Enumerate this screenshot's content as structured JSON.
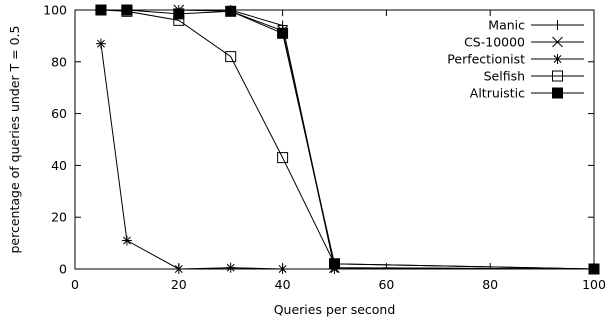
{
  "chart_data": {
    "type": "line",
    "xlabel": "Queries per second",
    "ylabel": "percentage of queries under T = 0.5",
    "xlim": [
      0,
      100
    ],
    "ylim": [
      0,
      100
    ],
    "xticks": [
      0,
      20,
      40,
      60,
      80,
      100
    ],
    "yticks": [
      0,
      20,
      40,
      60,
      80,
      100
    ],
    "legend_position": "top-right",
    "grid": false,
    "series": [
      {
        "name": "Manic",
        "marker": "plus",
        "x": [
          5,
          10,
          20,
          30,
          40,
          50,
          100
        ],
        "y": [
          100,
          100,
          100,
          100,
          94,
          0.5,
          0
        ]
      },
      {
        "name": "CS-10000",
        "marker": "cross",
        "x": [
          5,
          10,
          20,
          30,
          40,
          50,
          100
        ],
        "y": [
          100,
          100,
          100,
          99.5,
          92,
          0.5,
          0
        ]
      },
      {
        "name": "Perfectionist",
        "marker": "star",
        "x": [
          5,
          10,
          20,
          30,
          40,
          50,
          100
        ],
        "y": [
          87,
          11,
          0,
          0.5,
          0,
          0,
          0
        ]
      },
      {
        "name": "Selfish",
        "marker": "open-square",
        "x": [
          5,
          10,
          20,
          30,
          40,
          50,
          100
        ],
        "y": [
          100,
          99.5,
          96,
          82,
          43,
          2,
          0
        ]
      },
      {
        "name": "Altruistic",
        "marker": "filled-square",
        "x": [
          5,
          10,
          20,
          30,
          40,
          50,
          100
        ],
        "y": [
          100,
          100,
          98.5,
          99.5,
          91,
          2,
          0
        ]
      }
    ]
  }
}
